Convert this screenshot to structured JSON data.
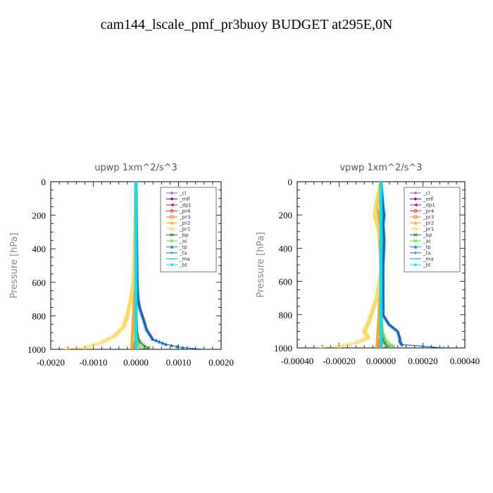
{
  "figure_title": "cam144_lscale_pmf_pr3buoy  BUDGET at295E,0N",
  "legend_entries": [
    {
      "label": "_cl",
      "color": "#9b59c8",
      "marker": "star"
    },
    {
      "label": "_mfl",
      "color": "#6a1a4a",
      "marker": "diamond"
    },
    {
      "label": "_dp1",
      "color": "#c2185b",
      "marker": "tri-left"
    },
    {
      "label": "_pr4",
      "color": "#e53935",
      "marker": "circle"
    },
    {
      "label": "_pr3",
      "color": "#ff7043",
      "marker": "square"
    },
    {
      "label": "_pr2",
      "color": "#ffa726",
      "marker": "tri-up"
    },
    {
      "label": "_pr1",
      "color": "#ffd54f",
      "marker": "square"
    },
    {
      "label": "_bp",
      "color": "#2e7d32",
      "marker": "x"
    },
    {
      "label": "_ac",
      "color": "#66dd44",
      "marker": "x"
    },
    {
      "label": "_tp",
      "color": "#1e88e5",
      "marker": "tri-up"
    },
    {
      "label": "_ta",
      "color": "#1a5fb4",
      "marker": "plus"
    },
    {
      "label": "_ma",
      "color": "#29a3a3",
      "marker": "dash"
    },
    {
      "label": "_bt",
      "color": "#00e5ff",
      "marker": "diamond"
    }
  ],
  "chart_data": [
    {
      "type": "line",
      "title": "upwp   1xm^2/s^3",
      "ylabel": "Pressure  [hPa]",
      "xlim": [
        -0.002,
        0.002
      ],
      "ylim": [
        1000,
        0
      ],
      "xticks": [
        -0.002,
        -0.001,
        0.0,
        0.001,
        0.002
      ],
      "xtick_labels": [
        "-0.0020",
        "-0.0010",
        "0.0000",
        "0.0010",
        "0.0020"
      ],
      "yticks": [
        0,
        200,
        400,
        600,
        800,
        1000
      ],
      "ytick_labels": [
        "0",
        "200",
        "400",
        "600",
        "800",
        "1000"
      ],
      "legend_position": "top-right",
      "series": [
        {
          "name": "_cl",
          "x": [
            0,
            0,
            0,
            0,
            0,
            0
          ],
          "y": [
            0,
            200,
            400,
            600,
            800,
            1000
          ]
        },
        {
          "name": "_mfl",
          "x": [
            0,
            0,
            0,
            0,
            0,
            0
          ],
          "y": [
            0,
            200,
            400,
            600,
            800,
            1000
          ]
        },
        {
          "name": "_dp1",
          "x": [
            0,
            0,
            0,
            0,
            0,
            0
          ],
          "y": [
            0,
            200,
            400,
            600,
            800,
            1000
          ]
        },
        {
          "name": "_pr4",
          "x": [
            0,
            0,
            0,
            0,
            0,
            0
          ],
          "y": [
            0,
            200,
            400,
            600,
            800,
            1000
          ]
        },
        {
          "name": "_pr3",
          "x": [
            0,
            0,
            0,
            0,
            0,
            0,
            0,
            -3e-05,
            -8e-05
          ],
          "y": [
            0,
            200,
            400,
            600,
            800,
            900,
            950,
            980,
            1000
          ]
        },
        {
          "name": "_pr2",
          "x": [
            0,
            -1e-05,
            -2e-05,
            -3e-05,
            -6e-05,
            -0.0001
          ],
          "y": [
            0,
            200,
            400,
            600,
            800,
            1000
          ]
        },
        {
          "name": "_pr1",
          "x": [
            0,
            -1e-05,
            -3e-05,
            -6e-05,
            -0.00012,
            -0.0002,
            -0.0003,
            -0.0005,
            -0.0008,
            -0.0012,
            -0.0017
          ],
          "y": [
            0,
            200,
            400,
            600,
            700,
            800,
            870,
            920,
            960,
            990,
            1000
          ]
        },
        {
          "name": "_bp",
          "x": [
            0,
            0,
            0,
            0,
            0,
            2e-05,
            5e-05,
            0.0001,
            0.0002,
            0.0003,
            0.00015
          ],
          "y": [
            0,
            200,
            400,
            600,
            800,
            900,
            940,
            960,
            980,
            990,
            1000
          ]
        },
        {
          "name": "_ac",
          "x": [
            0,
            0,
            0,
            0,
            0,
            0,
            2e-05,
            5e-05,
            0.0001,
            5e-05
          ],
          "y": [
            0,
            200,
            400,
            600,
            800,
            900,
            950,
            975,
            990,
            1000
          ]
        },
        {
          "name": "_tp",
          "x": [
            0,
            1e-05,
            2e-05,
            3e-05,
            5e-05,
            0.0001,
            0.00018,
            0.00025,
            0.0004,
            0.0007,
            0.0011,
            0.0016
          ],
          "y": [
            0,
            200,
            400,
            600,
            700,
            760,
            820,
            880,
            940,
            970,
            990,
            1000
          ]
        },
        {
          "name": "_ta",
          "x": [
            0,
            1e-05,
            2e-05,
            3e-05,
            5e-05,
            0.0001,
            0.00018,
            0.00025,
            0.0004,
            0.0007,
            0.0011,
            0.0016
          ],
          "y": [
            0,
            200,
            400,
            600,
            700,
            760,
            820,
            880,
            940,
            970,
            990,
            1000
          ]
        },
        {
          "name": "_ma",
          "x": [
            0,
            0,
            0,
            0,
            0,
            0
          ],
          "y": [
            0,
            200,
            400,
            600,
            800,
            1000
          ]
        },
        {
          "name": "_bt",
          "x": [
            0,
            0,
            0,
            0,
            0,
            0
          ],
          "y": [
            0,
            200,
            400,
            600,
            800,
            1000
          ]
        }
      ]
    },
    {
      "type": "line",
      "title": "vpwp   1xm^2/s^3",
      "ylabel": "Pressure  [hPa]",
      "xlim": [
        -0.0004,
        0.0004
      ],
      "ylim": [
        1000,
        0
      ],
      "xticks": [
        -0.0004,
        -0.0002,
        0.0,
        0.0002,
        0.0004
      ],
      "xtick_labels": [
        "-0.00040",
        "-0.00020",
        "0.00000",
        "0.00020",
        "0.00040"
      ],
      "yticks": [
        0,
        200,
        400,
        600,
        800,
        1000
      ],
      "ytick_labels": [
        "0",
        "200",
        "400",
        "600",
        "800",
        "1000"
      ],
      "legend_position": "top-right",
      "series": [
        {
          "name": "_cl",
          "x": [
            0,
            0,
            0,
            0,
            0,
            0
          ],
          "y": [
            0,
            200,
            400,
            600,
            800,
            1000
          ]
        },
        {
          "name": "_mfl",
          "x": [
            0,
            0,
            0,
            0,
            0,
            0
          ],
          "y": [
            0,
            200,
            400,
            600,
            800,
            1000
          ]
        },
        {
          "name": "_dp1",
          "x": [
            0,
            0,
            0,
            0,
            0,
            0
          ],
          "y": [
            0,
            200,
            400,
            600,
            800,
            1000
          ]
        },
        {
          "name": "_pr4",
          "x": [
            0,
            0,
            0,
            0,
            0,
            0
          ],
          "y": [
            0,
            200,
            400,
            600,
            800,
            1000
          ]
        },
        {
          "name": "_pr3",
          "x": [
            0,
            0,
            0,
            0,
            0,
            0,
            -1e-05,
            -2e-05
          ],
          "y": [
            0,
            200,
            400,
            600,
            800,
            950,
            980,
            1000
          ]
        },
        {
          "name": "_pr2",
          "x": [
            0,
            -2e-05,
            -1e-05,
            -1e-05,
            0,
            -1e-05,
            -2e-05
          ],
          "y": [
            0,
            150,
            200,
            300,
            500,
            800,
            1000
          ]
        },
        {
          "name": "_pr1",
          "x": [
            0,
            -2.5e-05,
            -3e-05,
            -2e-05,
            -1e-05,
            1e-05,
            5e-06,
            -2e-05,
            -6e-05,
            -8e-05,
            -6e-05,
            -0.00012,
            -0.0002,
            -0.0003
          ],
          "y": [
            0,
            150,
            200,
            250,
            300,
            400,
            500,
            700,
            850,
            900,
            940,
            970,
            990,
            1000
          ]
        },
        {
          "name": "_bp",
          "x": [
            0,
            0,
            0,
            0,
            0,
            5e-06,
            1e-05,
            2e-05,
            3e-05,
            2e-05
          ],
          "y": [
            0,
            200,
            400,
            600,
            800,
            900,
            950,
            975,
            990,
            1000
          ]
        },
        {
          "name": "_ac",
          "x": [
            0,
            0,
            0,
            0,
            0,
            5e-06,
            2e-05,
            4e-05,
            6e-05,
            4e-05
          ],
          "y": [
            0,
            200,
            400,
            600,
            800,
            900,
            950,
            975,
            990,
            1000
          ]
        },
        {
          "name": "_tp",
          "x": [
            0,
            1e-05,
            1.5e-05,
            1e-05,
            1.5e-05,
            1e-05,
            1e-05,
            4e-05,
            8e-05,
            9e-05,
            9e-05,
            0.0001,
            0.0002,
            0.0003
          ],
          "y": [
            0,
            150,
            200,
            250,
            350,
            500,
            800,
            860,
            900,
            940,
            960,
            980,
            990,
            1000
          ]
        },
        {
          "name": "_ta",
          "x": [
            0,
            1e-05,
            1.5e-05,
            1e-05,
            1.5e-05,
            1e-05,
            1e-05,
            4e-05,
            8e-05,
            9e-05,
            9e-05,
            0.0001,
            0.0002,
            0.0003
          ],
          "y": [
            0,
            150,
            200,
            250,
            350,
            500,
            800,
            860,
            900,
            940,
            960,
            980,
            990,
            1000
          ]
        },
        {
          "name": "_ma",
          "x": [
            0,
            0,
            0,
            0,
            0,
            0
          ],
          "y": [
            0,
            200,
            400,
            600,
            800,
            1000
          ]
        },
        {
          "name": "_bt",
          "x": [
            0,
            0,
            0,
            0,
            0,
            0
          ],
          "y": [
            0,
            200,
            400,
            600,
            800,
            1000
          ]
        }
      ]
    }
  ]
}
